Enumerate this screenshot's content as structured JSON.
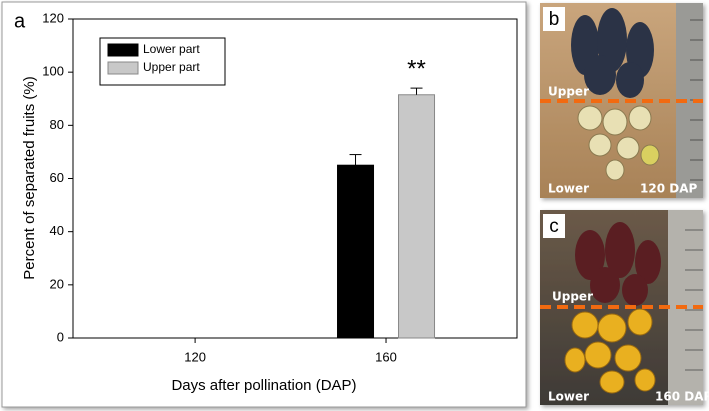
{
  "chart_data": {
    "type": "bar",
    "panel_label": "a",
    "xlabel": "Days after pollination (DAP)",
    "ylabel": "Percent of separated fruits (%)",
    "categories": [
      "120",
      "160"
    ],
    "series": [
      {
        "name": "Lower part",
        "color": "#000000",
        "values": [
          null,
          65
        ],
        "errors": [
          null,
          4
        ]
      },
      {
        "name": "Upper part",
        "color": "#c8c8c8",
        "values": [
          null,
          91.5
        ],
        "errors": [
          null,
          2.5
        ]
      }
    ],
    "annotation": "**",
    "ylim": [
      0,
      120
    ],
    "yticks": [
      0,
      20,
      40,
      60,
      80,
      100,
      120
    ],
    "legend": "upper left"
  },
  "panels": [
    {
      "label": "b",
      "upper": "Upper",
      "lower": "Lower",
      "stage": "120 DAP"
    },
    {
      "label": "c",
      "upper": "Upper",
      "lower": "Lower",
      "stage": "160 DAP"
    }
  ]
}
